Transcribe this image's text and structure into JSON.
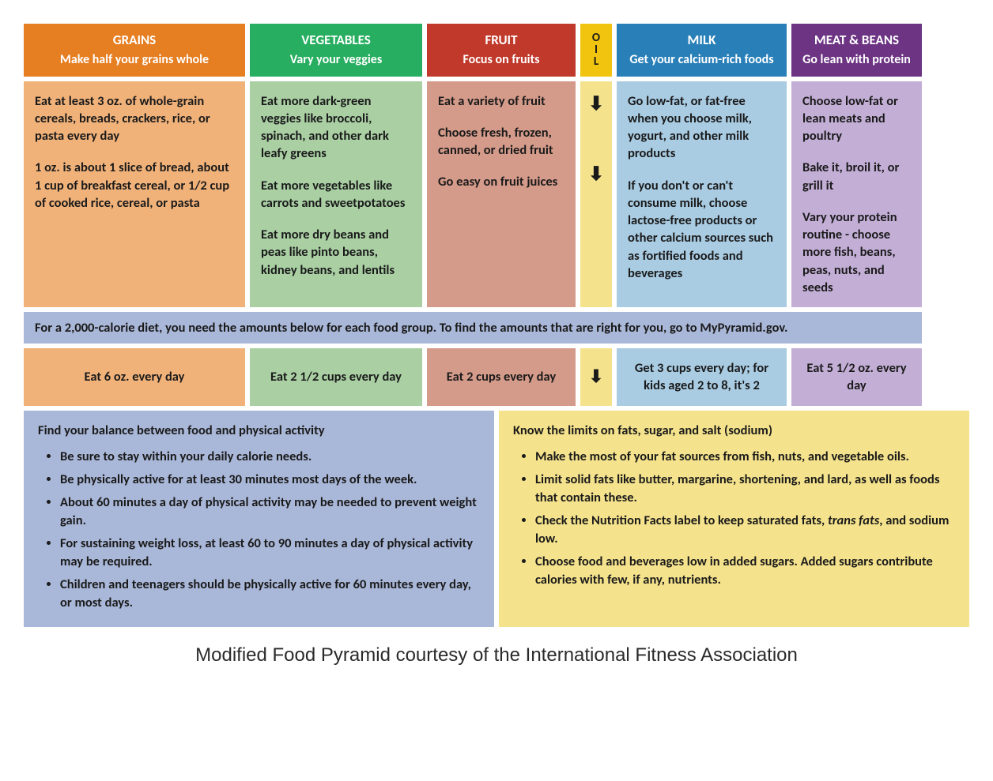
{
  "colors": {
    "grains_header": "#e67e22",
    "grains_body": "#f1b27a",
    "veg_header": "#27ae60",
    "veg_body": "#a9cfa3",
    "fruit_header": "#c0392b",
    "fruit_body": "#d49a8a",
    "oil_header": "#f1c40f",
    "oil_body": "#f4e28c",
    "milk_header": "#2980b9",
    "milk_body": "#a9cce3",
    "meat_header": "#6c3483",
    "meat_body": "#c3aed6",
    "note_bar": "#a9b7d8",
    "balance_box": "#a9b7d8",
    "limits_box": "#f4e28c"
  },
  "columns": [
    {
      "key": "grains",
      "title": "GRAINS",
      "subtitle": "Make half your grains whole",
      "tips": [
        "Eat at least 3 oz. of whole-grain cereals, breads, crackers, rice, or pasta every day",
        "1 oz. is about 1 slice of bread, about 1 cup of breakfast cereal, or 1/2 cup of cooked rice, cereal, or pasta"
      ],
      "amount": "Eat 6 oz. every day"
    },
    {
      "key": "veg",
      "title": "VEGETABLES",
      "subtitle": "Vary your veggies",
      "tips": [
        "Eat more dark-green veggies like broccoli, spinach, and other dark leafy greens",
        "Eat more vegetables like carrots and sweetpotatoes",
        "Eat more dry beans and peas like pinto beans, kidney beans, and lentils"
      ],
      "amount": "Eat 2 1/2 cups every day"
    },
    {
      "key": "fruit",
      "title": "FRUIT",
      "subtitle": "Focus on fruits",
      "tips": [
        "Eat a variety of fruit",
        "Choose fresh, frozen, canned, or dried fruit",
        "Go easy on fruit juices"
      ],
      "amount": "Eat 2 cups every day"
    },
    {
      "key": "oil",
      "title_letters": [
        "O",
        "I",
        "L"
      ],
      "arrow": "⬇",
      "amount_arrow": "⬇"
    },
    {
      "key": "milk",
      "title": "MILK",
      "subtitle": "Get your calcium-rich foods",
      "tips": [
        "Go low-fat, or fat-free when you choose milk, yogurt, and other milk products",
        "If you don't or can't consume milk, choose lactose-free products or other calcium sources such as fortified foods and beverages"
      ],
      "amount": "Get 3 cups every day; for kids aged 2 to 8, it's 2"
    },
    {
      "key": "meat",
      "title": "MEAT & BEANS",
      "subtitle": "Go lean with protein",
      "tips": [
        "Choose low-fat or lean meats and poultry",
        "Bake it, broil it, or grill it",
        "Vary your protein routine - choose more fish, beans, peas, nuts, and seeds"
      ],
      "amount": "Eat 5 1/2 oz. every day"
    }
  ],
  "note": "For a 2,000-calorie diet, you need the amounts below for each food group. To find the amounts that are right for you, go to MyPyramid.gov.",
  "balance": {
    "heading": "Find your balance between food and physical activity",
    "items": [
      "Be sure to stay within your daily calorie needs.",
      "Be physically active for at least 30 minutes most days of the week.",
      "About 60 minutes a day of physical activity may be needed to prevent weight gain.",
      "For sustaining weight loss, at least 60 to 90 minutes a day of physical activity may be required.",
      "Children and teenagers should be physically active for 60 minutes every day, or most days."
    ]
  },
  "limits": {
    "heading": "Know the limits on fats, sugar, and salt (sodium)",
    "items": [
      "Make the most of your fat sources from fish, nuts, and vegetable oils.",
      "Limit solid fats like butter, margarine, shortening, and lard, as well as foods that contain these.",
      "Check the Nutrition Facts label to keep saturated fats, <em class='trans'>trans fats</em>, and sodium low.",
      "Choose food and beverages low in added sugars. Added sugars contribute calories with few, if any, nutrients."
    ]
  },
  "footer": "Modified Food Pyramid courtesy of the International Fitness Association"
}
